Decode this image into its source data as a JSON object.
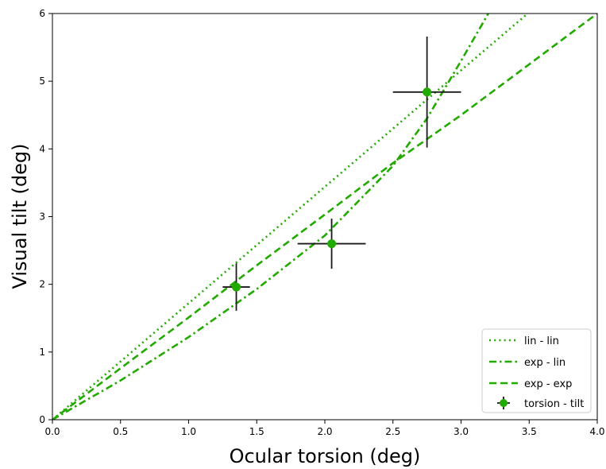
{
  "chart_data": {
    "type": "line",
    "xlabel": "Ocular torsion (deg)",
    "ylabel": "Visual tilt (deg)",
    "xlim": [
      0,
      4
    ],
    "ylim": [
      0,
      6
    ],
    "xticks": [
      "0.0",
      "0.5",
      "1.0",
      "1.5",
      "2.0",
      "2.5",
      "3.0",
      "3.5",
      "4.0"
    ],
    "yticks": [
      "0",
      "1",
      "2",
      "3",
      "4",
      "5",
      "6"
    ],
    "grid": false,
    "legend_position": "bottom-right",
    "series": [
      {
        "name": "lin - lin",
        "style": "dotted",
        "color": "#22aa00",
        "points": [
          [
            0,
            0
          ],
          [
            0.5,
            0.86
          ],
          [
            1.0,
            1.72
          ],
          [
            1.5,
            2.58
          ],
          [
            2.0,
            3.44
          ],
          [
            2.5,
            4.3
          ],
          [
            3.0,
            5.16
          ],
          [
            3.35,
            5.76
          ],
          [
            3.49,
            6.0
          ]
        ]
      },
      {
        "name": "exp - lin",
        "style": "dashdot",
        "color": "#22aa00",
        "points": [
          [
            0,
            0
          ],
          [
            0.5,
            0.58
          ],
          [
            1.0,
            1.22
          ],
          [
            1.5,
            1.93
          ],
          [
            2.0,
            2.72
          ],
          [
            2.5,
            3.75
          ],
          [
            2.75,
            4.45
          ],
          [
            3.0,
            5.3
          ],
          [
            3.2,
            6.0
          ]
        ]
      },
      {
        "name": "exp - exp",
        "style": "dashed",
        "color": "#22aa00",
        "points": [
          [
            0,
            0
          ],
          [
            0.5,
            0.76
          ],
          [
            1.0,
            1.51
          ],
          [
            1.5,
            2.28
          ],
          [
            2.0,
            3.03
          ],
          [
            2.5,
            3.79
          ],
          [
            3.0,
            4.5
          ],
          [
            3.5,
            5.25
          ],
          [
            4.0,
            6.0
          ]
        ]
      }
    ],
    "errorbars": {
      "name": "torsion - tilt",
      "color": "#22aa00",
      "errorbar_color": "#1a1a1a",
      "points": [
        {
          "x": 1.35,
          "y": 1.96,
          "xerr": 0.1,
          "yerr": 0.35
        },
        {
          "x": 2.05,
          "y": 2.6,
          "xerr": 0.25,
          "yerr": 0.37
        },
        {
          "x": 2.75,
          "y": 4.84,
          "xerr": 0.25,
          "yerr": 0.82
        }
      ]
    }
  }
}
